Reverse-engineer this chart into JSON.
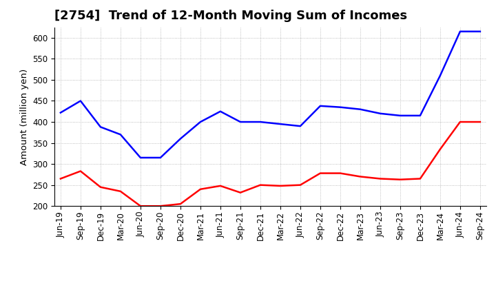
{
  "title": "[2754]  Trend of 12-Month Moving Sum of Incomes",
  "ylabel": "Amount (million yen)",
  "background_color": "#ffffff",
  "grid_color": "#aaaaaa",
  "ylim": [
    200,
    625
  ],
  "yticks": [
    200,
    250,
    300,
    350,
    400,
    450,
    500,
    550,
    600
  ],
  "x_labels": [
    "Jun-19",
    "Sep-19",
    "Dec-19",
    "Mar-20",
    "Jun-20",
    "Sep-20",
    "Dec-20",
    "Mar-21",
    "Jun-21",
    "Sep-21",
    "Dec-21",
    "Mar-22",
    "Jun-22",
    "Sep-22",
    "Dec-22",
    "Mar-23",
    "Jun-23",
    "Sep-23",
    "Dec-23",
    "Mar-24",
    "Jun-24",
    "Sep-24"
  ],
  "ordinary_income": [
    422,
    450,
    388,
    370,
    315,
    315,
    360,
    400,
    425,
    400,
    400,
    395,
    390,
    438,
    435,
    430,
    420,
    415,
    415,
    510,
    615,
    615
  ],
  "net_income": [
    265,
    283,
    245,
    235,
    200,
    200,
    205,
    240,
    248,
    232,
    250,
    248,
    250,
    278,
    278,
    270,
    265,
    263,
    265,
    335,
    400,
    400
  ],
  "ordinary_color": "#0000ff",
  "net_color": "#ff0000",
  "line_width": 1.8,
  "title_fontsize": 13,
  "legend_fontsize": 10,
  "tick_fontsize": 8.5,
  "ylabel_fontsize": 9.5
}
